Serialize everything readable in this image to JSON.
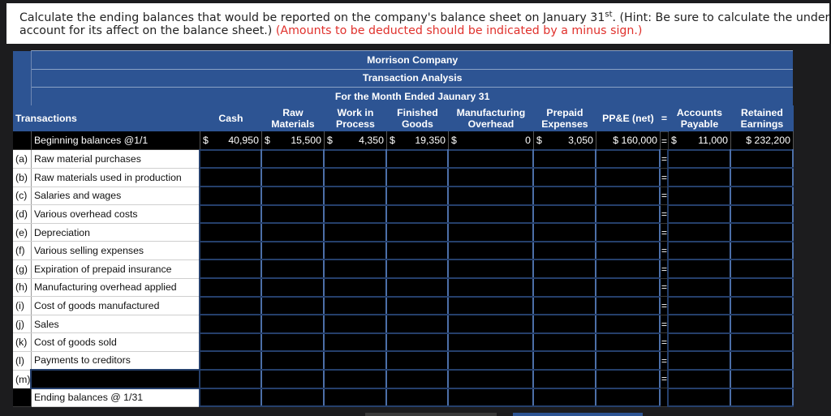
{
  "instruction": {
    "part1": "Calculate the ending balances that would be reported on the company's balance sheet on January 31",
    "superscript": "st",
    "part2": ". (Hint: Be sure to calculate the underapplied or over",
    "part3": "account for its affect on the balance sheet.)",
    "red_note": "(Amounts to be deducted should be indicated by a minus sign.)"
  },
  "table": {
    "title": "Morrison Company",
    "subtitle": "Transaction Analysis",
    "period": "For the Month Ended Jaunary 31",
    "transactions_header": "Transactions",
    "equals_sign": "=",
    "columns": {
      "cash": [
        "Cash"
      ],
      "raw_materials": [
        "Raw",
        "Materials"
      ],
      "wip": [
        "Work in",
        "Process"
      ],
      "finished_goods": [
        "Finished",
        "Goods"
      ],
      "mfg_overhead": [
        "Manufacturing",
        "Overhead"
      ],
      "prepaid": [
        "Prepaid",
        "Expenses"
      ],
      "ppe": [
        "PP&E (net)"
      ],
      "accounts_payable": [
        "Accounts",
        "Payable"
      ],
      "retained_earnings": [
        "Retained",
        "Earnings"
      ]
    },
    "beginning": {
      "label": "Beginning balances @1/1",
      "cash": "40,950",
      "raw_materials": "15,500",
      "wip": "4,350",
      "finished_goods": "19,350",
      "mfg_overhead": "0",
      "prepaid": "3,050",
      "ppe": "$ 160,000",
      "accounts_payable": "11,000",
      "retained_earnings": "$ 232,200",
      "dollar": "$"
    },
    "rows": [
      {
        "code": "(a)",
        "label": "Raw material purchases"
      },
      {
        "code": "(b)",
        "label": "Raw materials used in production"
      },
      {
        "code": "(c)",
        "label": "Salaries and wages"
      },
      {
        "code": "(d)",
        "label": "Various overhead costs"
      },
      {
        "code": "(e)",
        "label": "Depreciation"
      },
      {
        "code": "(f)",
        "label": "Various selling expenses"
      },
      {
        "code": "(g)",
        "label": "Expiration of prepaid insurance"
      },
      {
        "code": "(h)",
        "label": "Manufacturing overhead applied"
      },
      {
        "code": "(i)",
        "label": "Cost of goods manufactured"
      },
      {
        "code": "(j)",
        "label": "Sales"
      },
      {
        "code": "(k)",
        "label": "Cost of goods sold"
      },
      {
        "code": "(l)",
        "label": "Payments to creditors"
      },
      {
        "code": "(m)",
        "label": ""
      }
    ],
    "ending_label": "Ending balances @ 1/31"
  }
}
